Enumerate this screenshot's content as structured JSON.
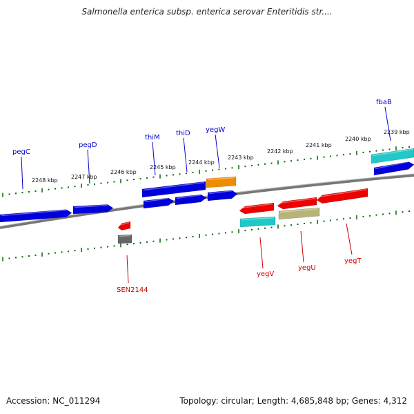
{
  "title": "Salmonella enterica subsp. enterica serovar Enteritidis str....",
  "footer": {
    "accession": "Accession: NC_011294",
    "summary": "Topology: circular; Length: 4,685,848 bp; Genes: 4,312"
  },
  "colors": {
    "forward_label": "#0000cc",
    "reverse_label": "#cc0000",
    "backbone": "#888888",
    "ticks": "#006600",
    "gene_blue": "#0000dd",
    "gene_cyan": "#22c8c8",
    "gene_orange": "#f08c00",
    "gene_red": "#ee0000",
    "gene_khaki": "#b8b478",
    "gene_gray": "#666666"
  },
  "scale_labels": [
    "2248 kbp",
    "2247 kbp",
    "2246 kbp",
    "2245 kbp",
    "2244 kbp",
    "2243 kbp",
    "2242 kbp",
    "2241 kbp",
    "2240 kbp",
    "2239 kbp"
  ],
  "forward_gene_labels": [
    "pegC",
    "pegD",
    "thiM",
    "thiD",
    "yegW",
    "fbaB"
  ],
  "reverse_gene_labels": [
    "SEN2144",
    "yegV",
    "yegU",
    "yegT"
  ]
}
